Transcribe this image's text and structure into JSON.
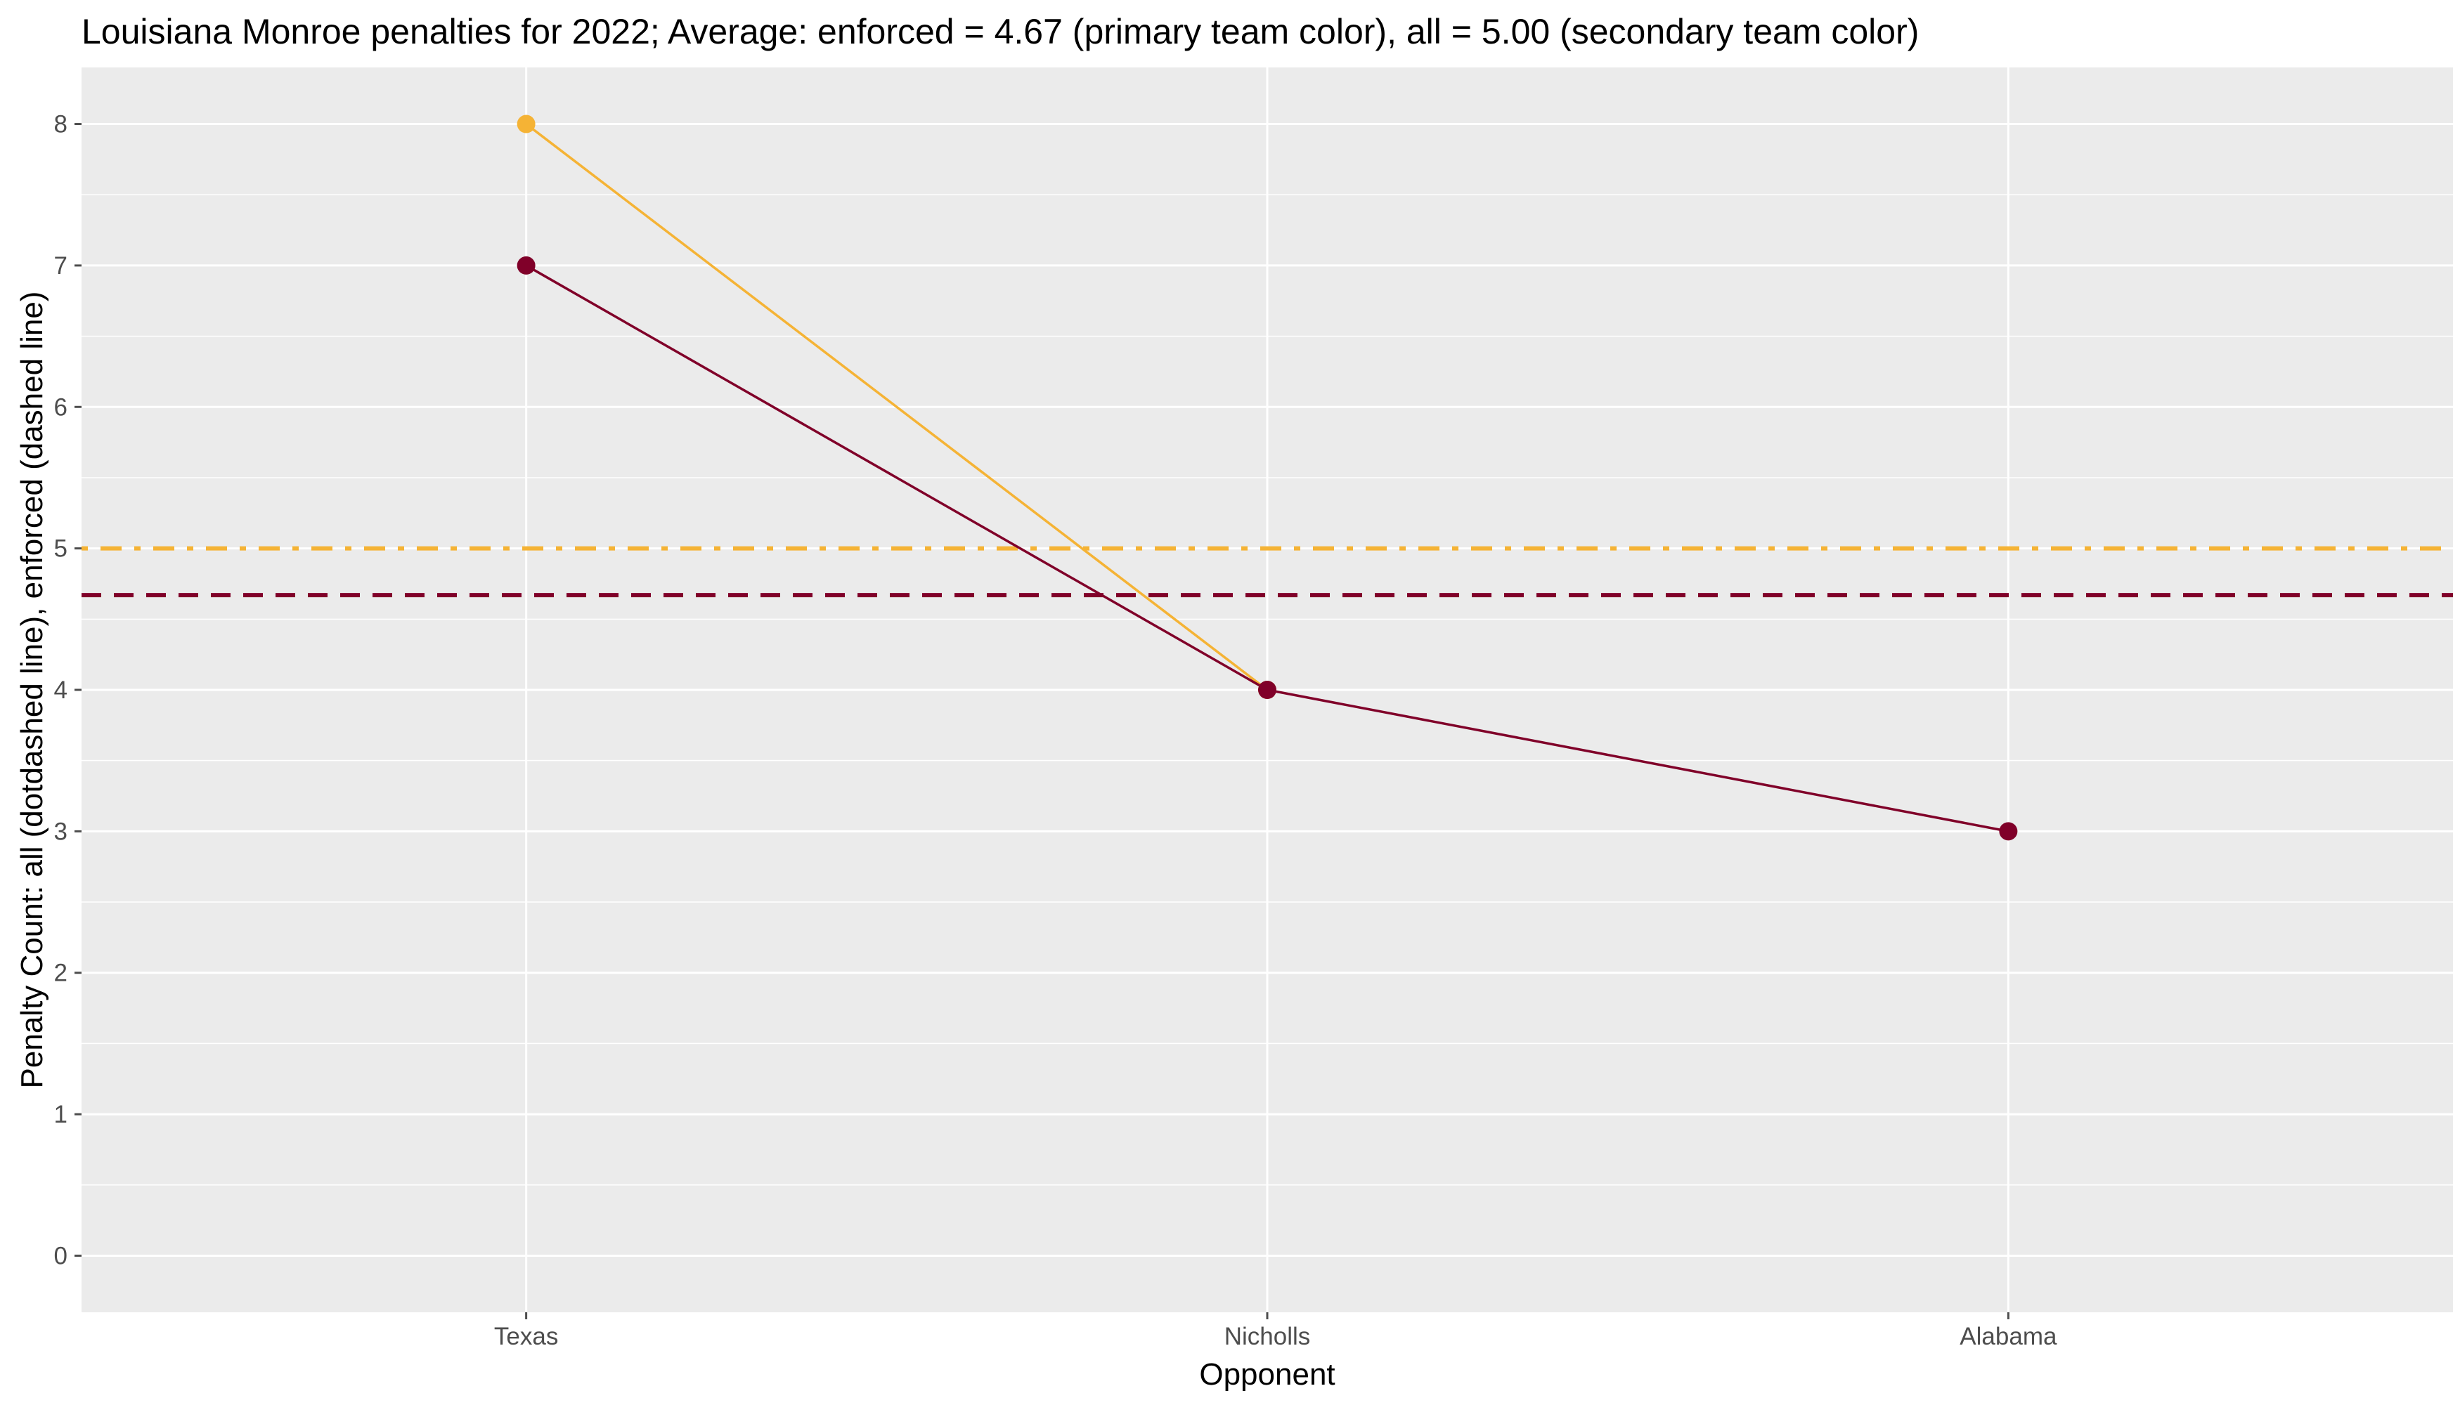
{
  "chart_data": {
    "type": "line",
    "title": "Louisiana Monroe penalties for 2022; Average: enforced = 4.67 (primary team color), all = 5.00 (secondary team color)",
    "xlabel": "Opponent",
    "ylabel": "Penalty Count: all (dotdashed line), enforced (dashed line)",
    "categories": [
      "Texas",
      "Nicholls",
      "Alabama"
    ],
    "ylim": [
      -0.4,
      8.4
    ],
    "yticks": [
      0,
      1,
      2,
      3,
      4,
      5,
      6,
      7,
      8
    ],
    "grid": true,
    "legend": "none",
    "series": [
      {
        "key": "all",
        "values": [
          8,
          4,
          null
        ],
        "color": "#f5b335"
      },
      {
        "key": "enforced",
        "values": [
          7,
          4,
          3
        ],
        "color": "#800029"
      }
    ],
    "reference_lines": [
      {
        "key": "all_average",
        "value": 5.0,
        "color": "#f5b335",
        "style": "dotdash"
      },
      {
        "key": "enforced_average",
        "value": 4.67,
        "color": "#800029",
        "style": "dash"
      }
    ],
    "panel_background": "#ebebeb",
    "grid_color": "#ffffff",
    "tick_color": "#4d4d4d"
  }
}
